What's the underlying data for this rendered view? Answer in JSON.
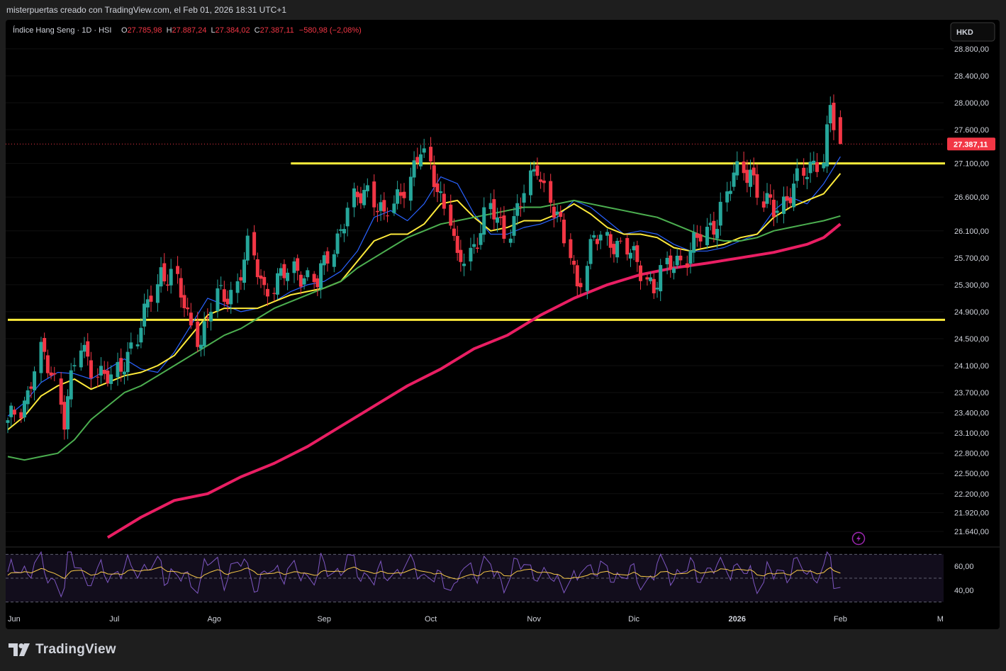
{
  "credit": "misterpuertas creado con TradingView.com, el Feb 01, 2026 18:31 UTC+1",
  "legend": {
    "symbol": "Índice Hang Seng · 1D · HSI",
    "o_label": "O",
    "o": "27.785,98",
    "h_label": "H",
    "h": "27.887,24",
    "l_label": "L",
    "l": "27.384,02",
    "c_label": "C",
    "c": "27.387,11",
    "change": "−580,98 (−2,08%)"
  },
  "currency_badge": "HKD",
  "last_price_label": "27.387,11",
  "brand": "TradingView",
  "colors": {
    "up": "#26a69a",
    "down": "#f23645",
    "ma_fast": "#2962ff",
    "ma_mid": "#ffeb3b",
    "ma_slow": "#4caf50",
    "ma_long": "#e91e63",
    "support_line": "#ffeb3b",
    "rsi": "#7e57c2",
    "rsi_ma": "#f7c948"
  },
  "icons": {
    "alert": "lightning-icon",
    "logo": "tradingview-logo-icon"
  },
  "chart_data": {
    "type": "candlestick",
    "timeframe": "1D",
    "y_axis": {
      "ticks": [
        28800,
        28400,
        28000,
        27600,
        27100,
        26600,
        26100,
        25700,
        25300,
        24900,
        24500,
        24100,
        23700,
        23400,
        23100,
        22800,
        22500,
        22200,
        21920,
        21640
      ],
      "tick_labels": [
        "28.800,00",
        "28.400,00",
        "28.000,00",
        "27.600,00",
        "27.100,00",
        "26.600,00",
        "26.100,00",
        "25.700,00",
        "25.300,00",
        "24.900,00",
        "24.500,00",
        "24.100,00",
        "23.700,00",
        "23.400,00",
        "23.100,00",
        "22.800,00",
        "22.500,00",
        "22.200,00",
        "21.920,00",
        "21.640,00"
      ],
      "range": [
        21430,
        29230
      ]
    },
    "x_axis": {
      "labels": [
        "Jun",
        "Jul",
        "Ago",
        "Sep",
        "Oct",
        "Nov",
        "Dic",
        "2026",
        "Feb",
        "M"
      ],
      "label_days": [
        0,
        32,
        62,
        95,
        127,
        158,
        188,
        219,
        250,
        280
      ]
    },
    "last_price": 27387.11,
    "horizontal_lines": [
      {
        "price": 27100,
        "from_day": 85,
        "to_day": 254
      },
      {
        "price": 24780,
        "from_day": 0,
        "to_day": 254
      }
    ],
    "moving_averages": [
      {
        "key": "ma_fast",
        "points": [
          [
            0,
            23350
          ],
          [
            5,
            23550
          ],
          [
            10,
            23850
          ],
          [
            15,
            24000
          ],
          [
            20,
            23980
          ],
          [
            25,
            23900
          ],
          [
            30,
            24050
          ],
          [
            35,
            24200
          ],
          [
            40,
            24050
          ],
          [
            45,
            24000
          ],
          [
            50,
            24300
          ],
          [
            55,
            24700
          ],
          [
            60,
            25100
          ],
          [
            65,
            25000
          ],
          [
            70,
            24900
          ],
          [
            75,
            24950
          ],
          [
            80,
            25050
          ],
          [
            85,
            25200
          ],
          [
            90,
            25300
          ],
          [
            95,
            25350
          ],
          [
            100,
            25500
          ],
          [
            105,
            25800
          ],
          [
            110,
            26300
          ],
          [
            115,
            26400
          ],
          [
            120,
            26250
          ],
          [
            125,
            26500
          ],
          [
            130,
            26900
          ],
          [
            135,
            26800
          ],
          [
            140,
            26350
          ],
          [
            145,
            26050
          ],
          [
            150,
            26050
          ],
          [
            155,
            26150
          ],
          [
            160,
            26200
          ],
          [
            165,
            26300
          ],
          [
            170,
            26550
          ],
          [
            175,
            26450
          ],
          [
            180,
            26250
          ],
          [
            185,
            26050
          ],
          [
            190,
            26100
          ],
          [
            195,
            26050
          ],
          [
            200,
            25900
          ],
          [
            205,
            25800
          ],
          [
            210,
            25800
          ],
          [
            215,
            25850
          ],
          [
            220,
            25950
          ],
          [
            225,
            26050
          ],
          [
            230,
            26400
          ],
          [
            235,
            26600
          ],
          [
            240,
            26500
          ],
          [
            245,
            26800
          ],
          [
            250,
            27200
          ]
        ]
      },
      {
        "key": "ma_mid",
        "points": [
          [
            0,
            23150
          ],
          [
            5,
            23350
          ],
          [
            10,
            23650
          ],
          [
            15,
            23800
          ],
          [
            20,
            23900
          ],
          [
            25,
            23750
          ],
          [
            30,
            23850
          ],
          [
            35,
            23950
          ],
          [
            40,
            24000
          ],
          [
            45,
            24100
          ],
          [
            50,
            24250
          ],
          [
            55,
            24550
          ],
          [
            60,
            24850
          ],
          [
            65,
            24950
          ],
          [
            70,
            24950
          ],
          [
            75,
            24950
          ],
          [
            80,
            25050
          ],
          [
            85,
            25150
          ],
          [
            90,
            25200
          ],
          [
            95,
            25250
          ],
          [
            100,
            25350
          ],
          [
            105,
            25650
          ],
          [
            110,
            25950
          ],
          [
            115,
            26050
          ],
          [
            120,
            26050
          ],
          [
            125,
            26200
          ],
          [
            130,
            26500
          ],
          [
            135,
            26550
          ],
          [
            140,
            26300
          ],
          [
            145,
            26100
          ],
          [
            150,
            26150
          ],
          [
            155,
            26250
          ],
          [
            160,
            26250
          ],
          [
            165,
            26350
          ],
          [
            170,
            26500
          ],
          [
            175,
            26350
          ],
          [
            180,
            26150
          ],
          [
            185,
            26050
          ],
          [
            190,
            26050
          ],
          [
            195,
            26000
          ],
          [
            200,
            25850
          ],
          [
            205,
            25800
          ],
          [
            210,
            25850
          ],
          [
            215,
            25900
          ],
          [
            220,
            26000
          ],
          [
            225,
            26050
          ],
          [
            230,
            26300
          ],
          [
            235,
            26450
          ],
          [
            240,
            26550
          ],
          [
            245,
            26650
          ],
          [
            250,
            26950
          ]
        ]
      },
      {
        "key": "ma_slow",
        "points": [
          [
            0,
            22750
          ],
          [
            5,
            22700
          ],
          [
            10,
            22750
          ],
          [
            15,
            22800
          ],
          [
            20,
            23000
          ],
          [
            25,
            23300
          ],
          [
            30,
            23500
          ],
          [
            35,
            23700
          ],
          [
            40,
            23800
          ],
          [
            45,
            23950
          ],
          [
            50,
            24100
          ],
          [
            55,
            24250
          ],
          [
            60,
            24400
          ],
          [
            65,
            24550
          ],
          [
            70,
            24650
          ],
          [
            75,
            24800
          ],
          [
            80,
            24950
          ],
          [
            85,
            25050
          ],
          [
            90,
            25150
          ],
          [
            95,
            25250
          ],
          [
            100,
            25350
          ],
          [
            105,
            25550
          ],
          [
            110,
            25700
          ],
          [
            115,
            25850
          ],
          [
            120,
            26000
          ],
          [
            125,
            26100
          ],
          [
            130,
            26200
          ],
          [
            135,
            26250
          ],
          [
            140,
            26300
          ],
          [
            145,
            26350
          ],
          [
            150,
            26400
          ],
          [
            155,
            26450
          ],
          [
            160,
            26450
          ],
          [
            165,
            26500
          ],
          [
            170,
            26550
          ],
          [
            175,
            26500
          ],
          [
            180,
            26450
          ],
          [
            185,
            26400
          ],
          [
            190,
            26350
          ],
          [
            195,
            26300
          ],
          [
            200,
            26200
          ],
          [
            205,
            26100
          ],
          [
            210,
            26000
          ],
          [
            215,
            25950
          ],
          [
            220,
            25950
          ],
          [
            225,
            26000
          ],
          [
            230,
            26100
          ],
          [
            235,
            26150
          ],
          [
            240,
            26200
          ],
          [
            245,
            26250
          ],
          [
            250,
            26320
          ]
        ]
      },
      {
        "key": "ma_long",
        "points": [
          [
            30,
            21550
          ],
          [
            40,
            21850
          ],
          [
            50,
            22100
          ],
          [
            60,
            22200
          ],
          [
            70,
            22450
          ],
          [
            80,
            22650
          ],
          [
            90,
            22900
          ],
          [
            100,
            23200
          ],
          [
            110,
            23500
          ],
          [
            120,
            23800
          ],
          [
            130,
            24050
          ],
          [
            140,
            24350
          ],
          [
            150,
            24550
          ],
          [
            160,
            24850
          ],
          [
            170,
            25100
          ],
          [
            180,
            25300
          ],
          [
            190,
            25450
          ],
          [
            200,
            25550
          ],
          [
            210,
            25620
          ],
          [
            220,
            25700
          ],
          [
            230,
            25780
          ],
          [
            240,
            25900
          ],
          [
            245,
            26000
          ],
          [
            250,
            26200
          ]
        ]
      }
    ],
    "candles": [],
    "rsi": {
      "ticks": [
        60,
        40
      ],
      "tick_labels": [
        "60,00",
        "40,00"
      ],
      "levels": [
        70,
        50,
        30
      ],
      "range": [
        25,
        75
      ]
    }
  }
}
